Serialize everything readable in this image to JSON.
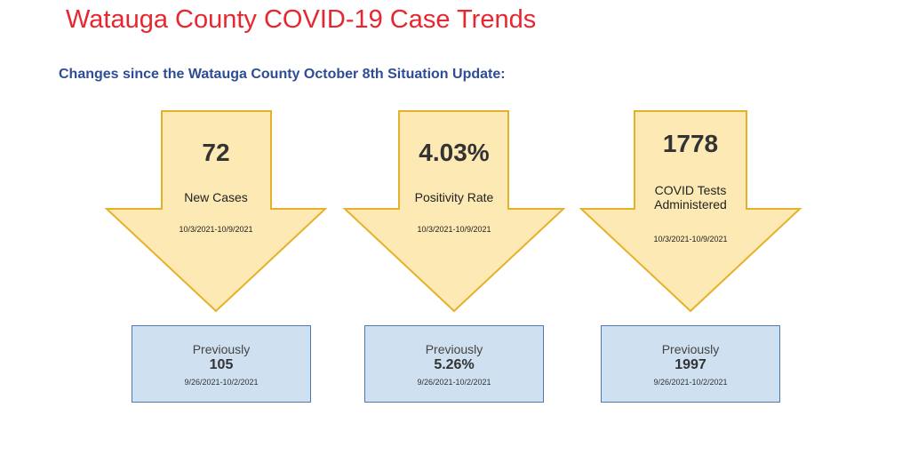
{
  "title": "Watauga County COVID-19 Case Trends",
  "subtitle": "Changes since the Watauga County October 8th Situation Update:",
  "colors": {
    "title": "#e8262f",
    "subtitle": "#2e4d94",
    "arrow_fill": "#fde9b4",
    "arrow_stroke": "#e6b12a",
    "box_fill": "#cfe0f1",
    "box_stroke": "#5079b4"
  },
  "metrics": [
    {
      "value": "72",
      "label_lines": [
        "New Cases"
      ],
      "range": "10/3/2021-10/9/2021",
      "previous_label": "Previously",
      "previous_value": "105",
      "previous_range": "9/26/2021-10/2/2021"
    },
    {
      "value": "4.03%",
      "label_lines": [
        "Positivity Rate"
      ],
      "range": "10/3/2021-10/9/2021",
      "previous_label": "Previously",
      "previous_value": "5.26%",
      "previous_range": "9/26/2021-10/2/2021"
    },
    {
      "value": "1778",
      "label_lines": [
        "COVID Tests",
        "Administered"
      ],
      "range": "10/3/2021-10/9/2021",
      "previous_label": "Previously",
      "previous_value": "1997",
      "previous_range": "9/26/2021-10/2/2021"
    }
  ]
}
